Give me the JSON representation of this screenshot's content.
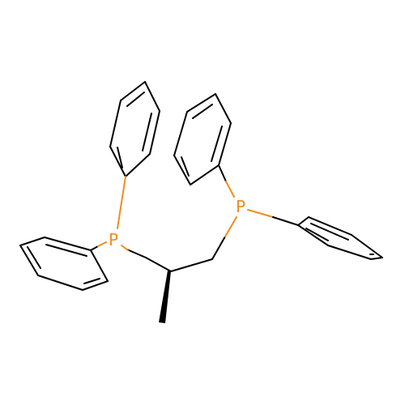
{
  "molecule": {
    "atoms": [
      {
        "id": "p1",
        "label": "P"
      },
      {
        "id": "p2",
        "label": "P"
      }
    ]
  },
  "colors": {
    "bond": "#000000",
    "phosphorus": "#f28c1e",
    "background": "#ffffff"
  }
}
